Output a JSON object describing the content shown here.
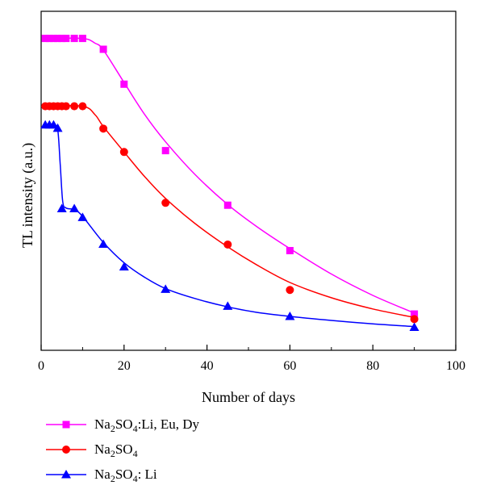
{
  "chart_data": {
    "type": "line",
    "xlabel": "Number of days",
    "ylabel": "TL intensity (a.u.)",
    "xlim": [
      0,
      100
    ],
    "ylim": [
      0,
      1
    ],
    "x_ticks": [
      "0",
      "20",
      "40",
      "60",
      "80",
      "100"
    ],
    "y_tick_labels_shown": false,
    "grid": false,
    "legend_position": "bottom-left, below plot",
    "series": [
      {
        "name": "Na2SO4:Li, Eu, Dy",
        "legend_parts": [
          {
            "text": "Na"
          },
          {
            "text": "2",
            "sub": true
          },
          {
            "text": "SO"
          },
          {
            "text": "4",
            "sub": true
          },
          {
            "text": ":Li, Eu, Dy"
          }
        ],
        "color": "#ff00ff",
        "marker": "square",
        "x": [
          1,
          2,
          3,
          4,
          5,
          6,
          8,
          10,
          15,
          20,
          30,
          45,
          60,
          90
        ],
        "y": [
          0.92,
          0.92,
          0.92,
          0.92,
          0.92,
          0.92,
          0.92,
          0.92,
          0.888,
          0.785,
          0.589,
          0.428,
          0.294,
          0.107
        ],
        "curve": [
          [
            1,
            0.92
          ],
          [
            10,
            0.92
          ],
          [
            13,
            0.906
          ],
          [
            15,
            0.886
          ],
          [
            20,
            0.79
          ],
          [
            25,
            0.695
          ],
          [
            30,
            0.615
          ],
          [
            37,
            0.52
          ],
          [
            45,
            0.43
          ],
          [
            52,
            0.365
          ],
          [
            60,
            0.3
          ],
          [
            70,
            0.225
          ],
          [
            80,
            0.162
          ],
          [
            90,
            0.11
          ]
        ]
      },
      {
        "name": "Na2SO4",
        "legend_parts": [
          {
            "text": "Na"
          },
          {
            "text": "2",
            "sub": true
          },
          {
            "text": "SO"
          },
          {
            "text": "4",
            "sub": true
          }
        ],
        "color": "#ff0000",
        "marker": "circle",
        "x": [
          1,
          2,
          3,
          4,
          5,
          6,
          8,
          10,
          15,
          20,
          30,
          45,
          60,
          90
        ],
        "y": [
          0.72,
          0.72,
          0.72,
          0.72,
          0.72,
          0.72,
          0.72,
          0.72,
          0.654,
          0.585,
          0.435,
          0.312,
          0.178,
          0.092
        ],
        "curve": [
          [
            1,
            0.72
          ],
          [
            10,
            0.72
          ],
          [
            13,
            0.695
          ],
          [
            15,
            0.66
          ],
          [
            20,
            0.585
          ],
          [
            25,
            0.512
          ],
          [
            30,
            0.448
          ],
          [
            37,
            0.375
          ],
          [
            45,
            0.305
          ],
          [
            52,
            0.252
          ],
          [
            60,
            0.2
          ],
          [
            70,
            0.155
          ],
          [
            80,
            0.122
          ],
          [
            90,
            0.097
          ]
        ]
      },
      {
        "name": "Na2SO4: Li",
        "legend_parts": [
          {
            "text": "Na"
          },
          {
            "text": "2",
            "sub": true
          },
          {
            "text": "SO"
          },
          {
            "text": "4",
            "sub": true
          },
          {
            "text": ": Li"
          }
        ],
        "color": "#0000ff",
        "marker": "triangle",
        "x": [
          1,
          2,
          3,
          4,
          5,
          8,
          10,
          15,
          20,
          30,
          45,
          60,
          90
        ],
        "y": [
          0.665,
          0.665,
          0.665,
          0.655,
          0.418,
          0.418,
          0.392,
          0.313,
          0.246,
          0.18,
          0.13,
          0.1,
          0.068
        ],
        "curve": [
          [
            1,
            0.665
          ],
          [
            3,
            0.665
          ],
          [
            4,
            0.65
          ],
          [
            4.6,
            0.55
          ],
          [
            5.2,
            0.44
          ],
          [
            6,
            0.42
          ],
          [
            8,
            0.415
          ],
          [
            10,
            0.395
          ],
          [
            15,
            0.318
          ],
          [
            20,
            0.258
          ],
          [
            25,
            0.215
          ],
          [
            30,
            0.182
          ],
          [
            37,
            0.153
          ],
          [
            45,
            0.128
          ],
          [
            52,
            0.112
          ],
          [
            60,
            0.1
          ],
          [
            70,
            0.088
          ],
          [
            80,
            0.078
          ],
          [
            90,
            0.07
          ]
        ]
      }
    ]
  }
}
